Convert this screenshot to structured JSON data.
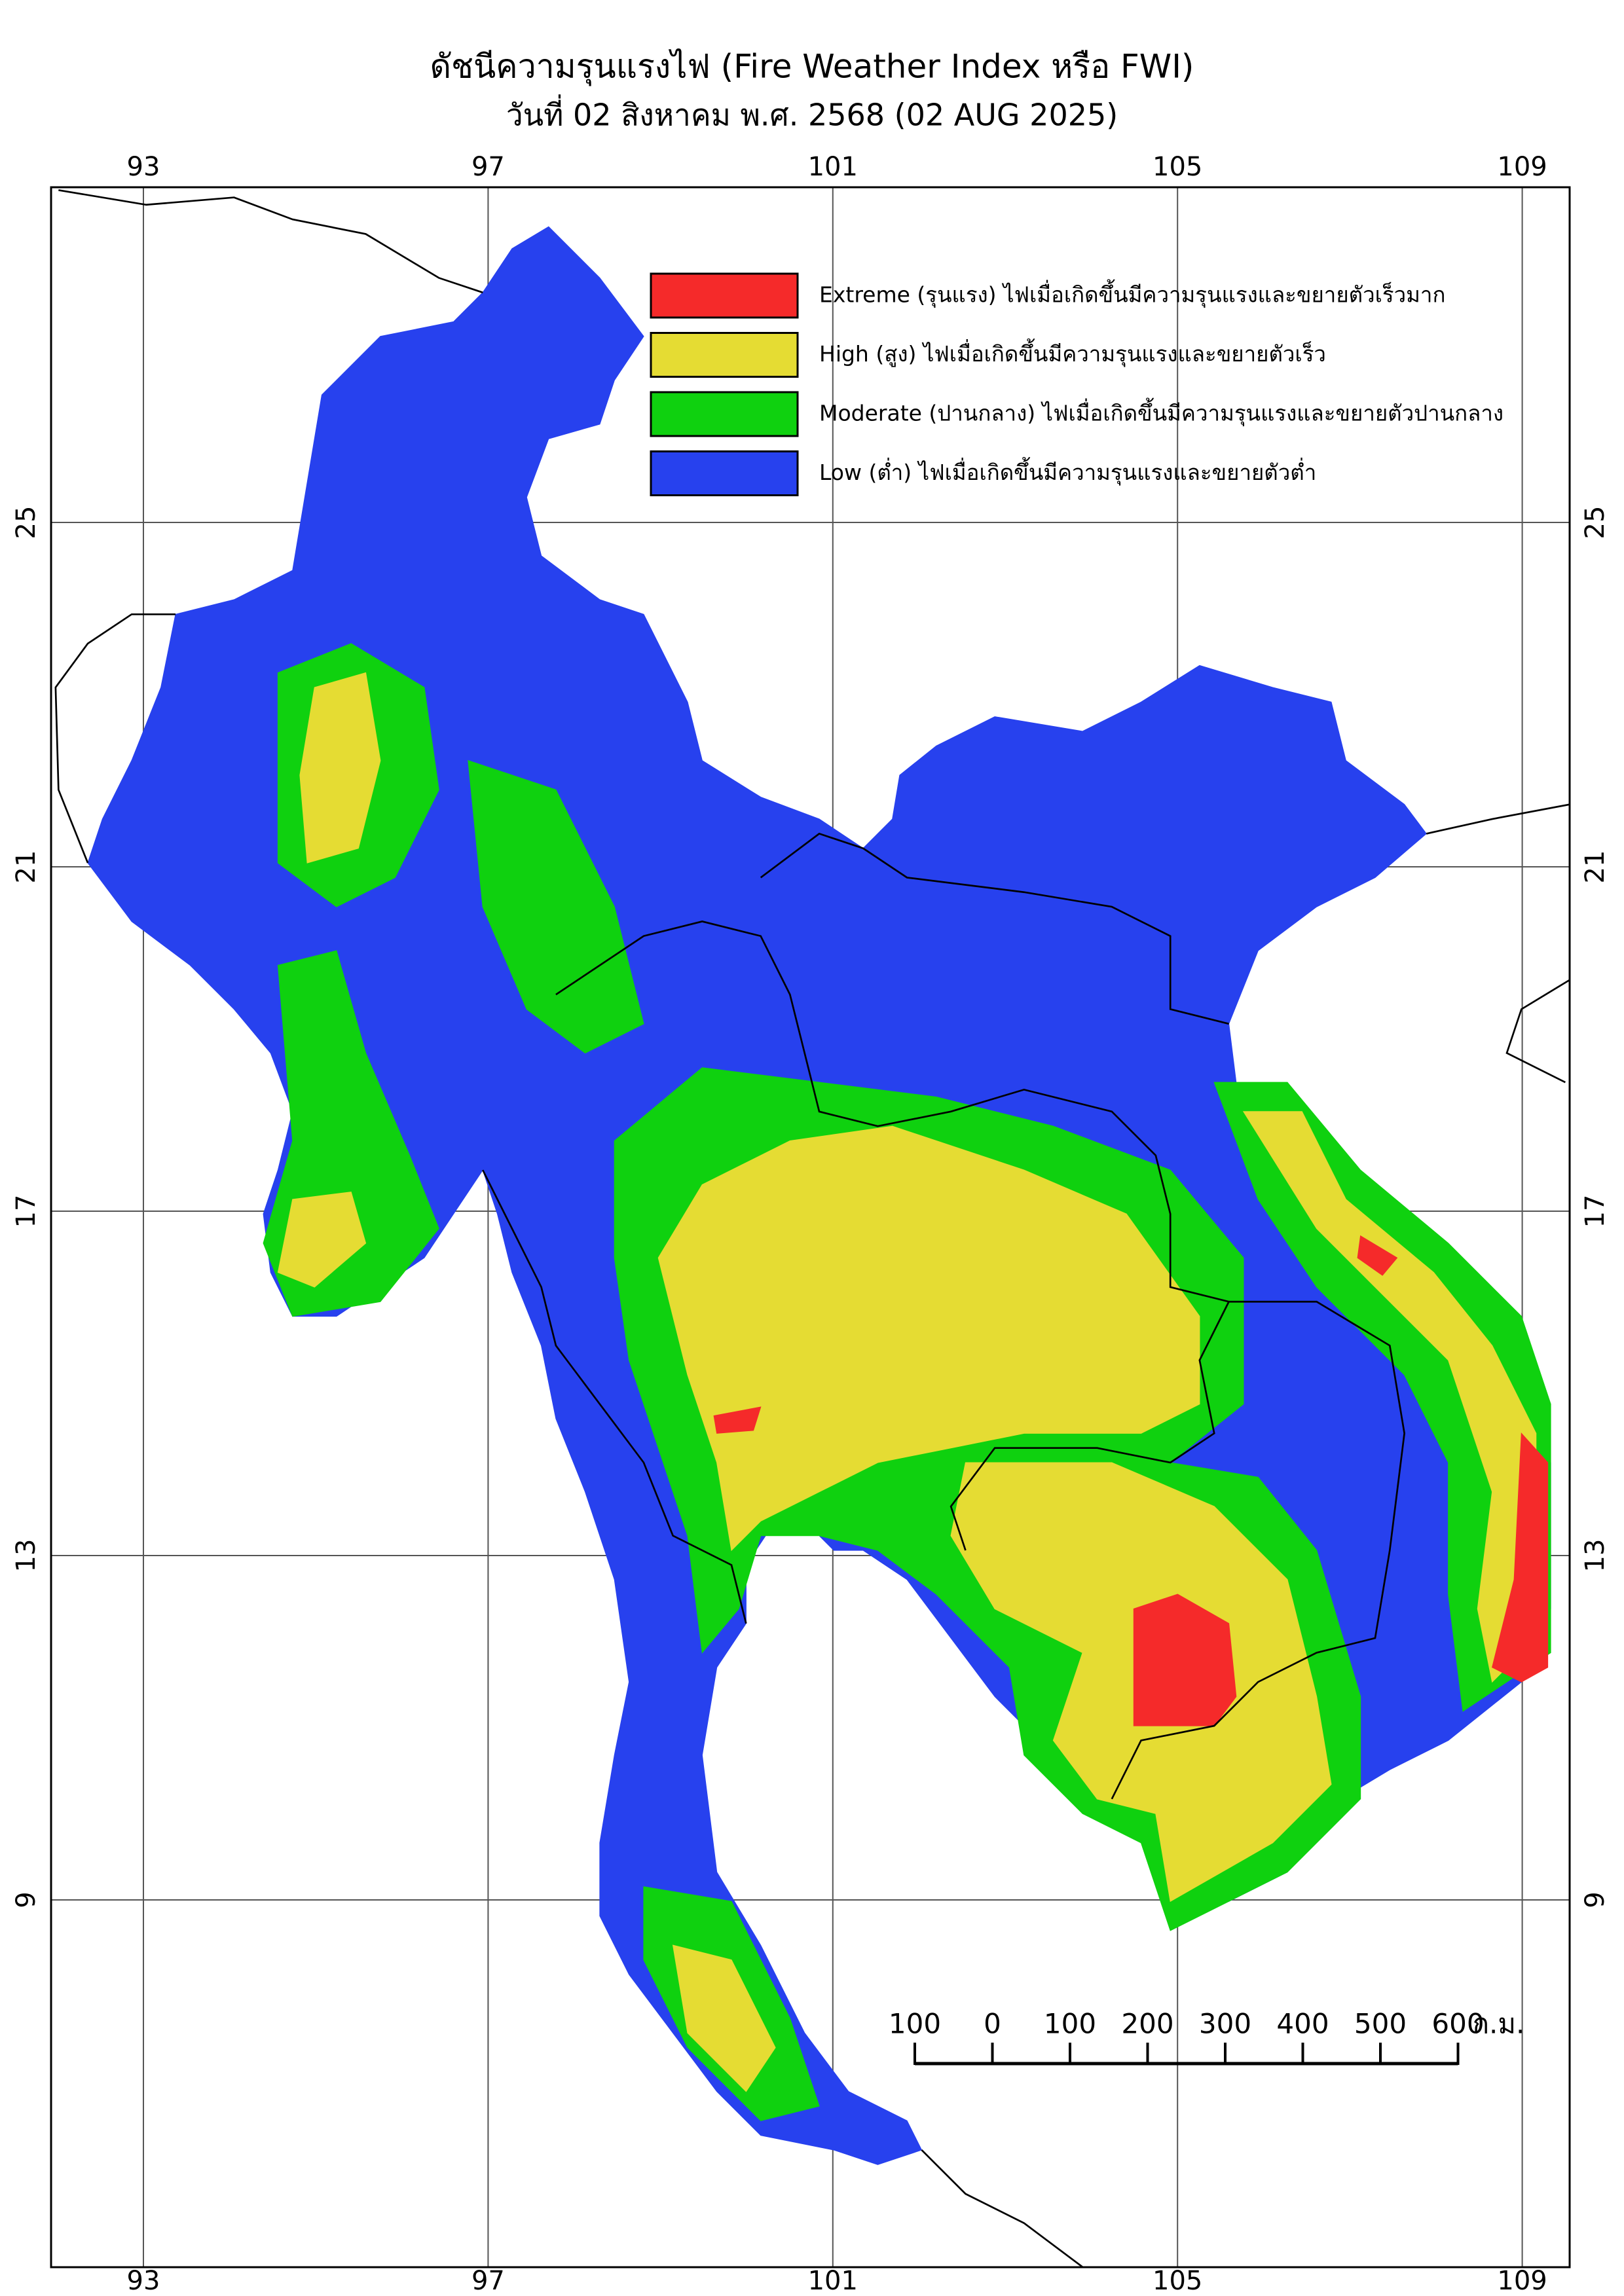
{
  "header": {
    "title": "ดัชนีความรุนแรงไฟ (Fire Weather Index หรือ FWI)",
    "subtitle": "วันที่ 02 สิงหาคม พ.ศ. 2568 (02 AUG 2025)"
  },
  "legend": [
    {
      "label": "Extreme (รุนแรง) ไฟเมื่อเกิดขึ้นมีความรุนแรงและขยายตัวเร็วมาก",
      "color": "#f52a2a"
    },
    {
      "label": "High (สูง) ไฟเมื่อเกิดขึ้นมีความรุนแรงและขยายตัวเร็ว",
      "color": "#e5dc33"
    },
    {
      "label": "Moderate (ปานกลาง) ไฟเมื่อเกิดขึ้นมีความรุนแรงและขยายตัวปานกลาง",
      "color": "#0fd10f"
    },
    {
      "label": "Low (ต่ำ) ไฟเมื่อเกิดขึ้นมีความรุนแรงและขยายตัวต่ำ",
      "color": "#2741ee"
    }
  ],
  "map": {
    "lon_ticks": [
      93,
      97,
      101,
      105,
      109
    ],
    "lat_ticks": [
      25,
      21,
      17,
      13,
      9
    ]
  },
  "scale_bar": {
    "labels": [
      100,
      0,
      100,
      200,
      300,
      400,
      500,
      600
    ],
    "unit": "ก.ม."
  }
}
